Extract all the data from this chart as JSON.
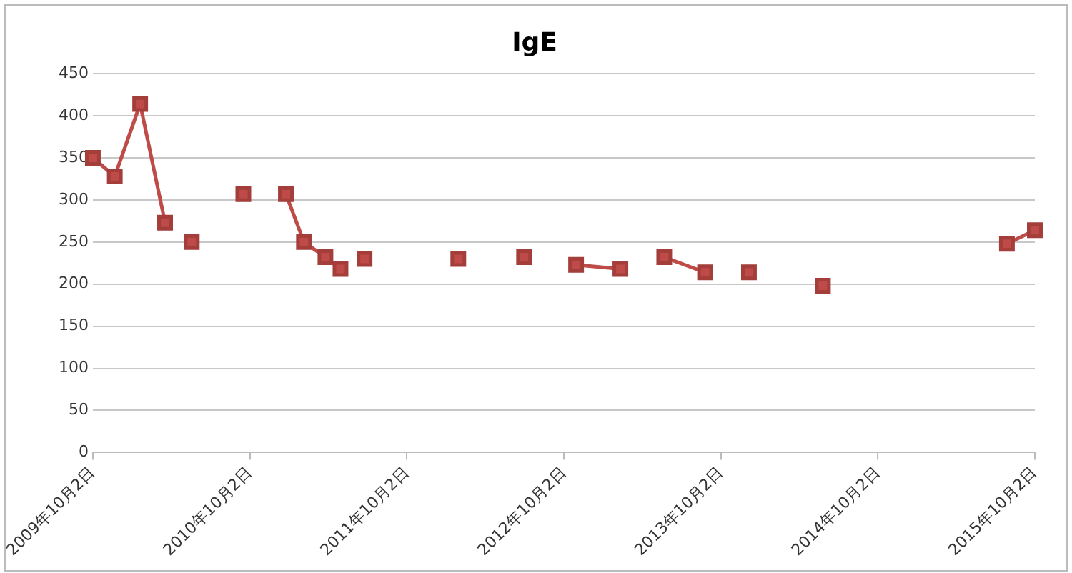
{
  "chart_data": {
    "type": "line",
    "title": "IgE",
    "x": [
      "2009-10-02",
      "2009-11-22",
      "2010-01-20",
      "2010-03-19",
      "2010-04-20",
      "2010-05-20",
      "2010-07-20",
      "2010-09-17",
      "2010-11-10",
      "2010-12-25",
      "2011-02-05",
      "2011-03-27",
      "2011-05-01",
      "2011-06-01",
      "2011-06-26",
      "2011-10-01",
      "2012-01-30",
      "2012-04-20",
      "2012-07-01",
      "2012-09-01",
      "2012-10-30",
      "2013-02-10",
      "2013-04-01",
      "2013-05-23",
      "2013-08-26",
      "2013-10-20",
      "2013-12-06",
      "2014-03-01",
      "2014-05-27",
      "2015-01-01",
      "2015-07-29",
      "2015-10-02"
    ],
    "series": [
      {
        "color": "#be4b48",
        "values": [
          350,
          328,
          414,
          273,
          null,
          250,
          null,
          307,
          null,
          307,
          250,
          232,
          218,
          null,
          230,
          null,
          230,
          null,
          232,
          null,
          223,
          218,
          null,
          232,
          214,
          null,
          214,
          null,
          198,
          null,
          248,
          264
        ]
      }
    ],
    "xlim": [
      "2009-10-02",
      "2015-10-02"
    ],
    "xticks": [
      {
        "value": "2009-10-02",
        "label": "2009年10月2日"
      },
      {
        "value": "2010-10-02",
        "label": "2010年10月2日"
      },
      {
        "value": "2011-10-02",
        "label": "2011年10月2日"
      },
      {
        "value": "2012-10-02",
        "label": "2012年10月2日"
      },
      {
        "value": "2013-10-02",
        "label": "2013年10月2日"
      },
      {
        "value": "2014-10-02",
        "label": "2014年10月2日"
      },
      {
        "value": "2015-10-02",
        "label": "2015年10月2日"
      }
    ],
    "ylim": [
      0,
      450
    ],
    "yticks": [
      0,
      50,
      100,
      150,
      200,
      250,
      300,
      350,
      400,
      450
    ],
    "grid": "y",
    "legend": false,
    "marker": "square",
    "line_style": "solid"
  }
}
